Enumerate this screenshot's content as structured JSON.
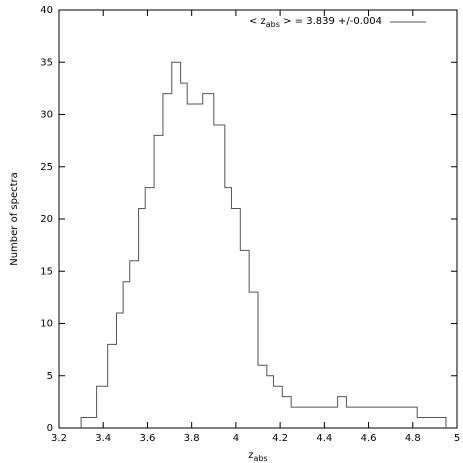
{
  "chart_data": {
    "type": "histogram",
    "ylabel": "Number of spectra",
    "xlabel": {
      "text": "z",
      "subscript": "abs"
    },
    "series": [
      {
        "name": {
          "text": "< z",
          "subscript": "abs",
          "rest": " > = 3.839 +/-0.004"
        },
        "color": "#555555",
        "bins": [
          3.3,
          3.37,
          3.42,
          3.46,
          3.49,
          3.52,
          3.56,
          3.59,
          3.63,
          3.67,
          3.71,
          3.75,
          3.78,
          3.85,
          3.9,
          3.95,
          3.98,
          4.02,
          4.06,
          4.1,
          4.14,
          4.17,
          4.21,
          4.25,
          4.46,
          4.5,
          4.82,
          4.95
        ],
        "values": [
          1,
          4,
          8,
          11,
          14,
          16,
          21,
          23,
          28,
          32,
          35,
          33,
          31,
          32,
          29,
          23,
          21,
          17,
          13,
          6,
          5,
          4,
          3,
          2,
          3,
          2,
          1
        ]
      }
    ],
    "xlim": [
      3.2,
      5
    ],
    "ylim": [
      0,
      40
    ],
    "xticks": [
      3.2,
      3.4,
      3.6,
      3.8,
      4,
      4.2,
      4.4,
      4.6,
      4.8,
      5
    ],
    "yticks": [
      0,
      5,
      10,
      15,
      20,
      25,
      30,
      35,
      40
    ],
    "legend": "top-right"
  }
}
